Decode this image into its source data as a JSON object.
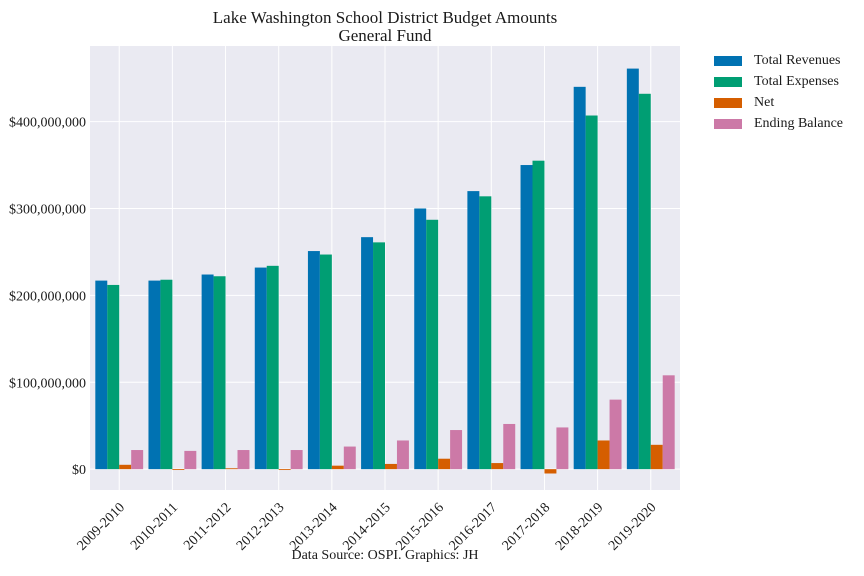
{
  "chart_data": {
    "type": "bar",
    "title": "Lake Washington School District Budget Amounts",
    "subtitle": "General Fund",
    "caption": "Data Source: OSPI. Graphics: JH",
    "categories": [
      "2009-2010",
      "2010-2011",
      "2011-2012",
      "2012-2013",
      "2013-2014",
      "2014-2015",
      "2015-2016",
      "2016-2017",
      "2017-2018",
      "2018-2019",
      "2019-2020"
    ],
    "series": [
      {
        "name": "Total Revenues",
        "color": "#0072B2",
        "values": [
          217000000,
          217000000,
          224000000,
          232000000,
          251000000,
          267000000,
          300000000,
          320000000,
          350000000,
          440000000,
          461000000
        ]
      },
      {
        "name": "Total Expenses",
        "color": "#009E73",
        "values": [
          212000000,
          218000000,
          222000000,
          234000000,
          247000000,
          261000000,
          287000000,
          314000000,
          355000000,
          407000000,
          432000000
        ]
      },
      {
        "name": "Net",
        "color": "#D55E00",
        "values": [
          5000000,
          -1000000,
          1000000,
          -1000000,
          4000000,
          6000000,
          12000000,
          7000000,
          -5000000,
          33000000,
          28000000
        ]
      },
      {
        "name": "Ending Balance",
        "color": "#CC79A7",
        "values": [
          22000000,
          21000000,
          22000000,
          22000000,
          26000000,
          33000000,
          45000000,
          52000000,
          48000000,
          80000000,
          108000000
        ]
      }
    ],
    "yticks": [
      0,
      100000000,
      200000000,
      300000000,
      400000000
    ],
    "ytick_labels": [
      "$0",
      "$100,000,000",
      "$200,000,000",
      "$300,000,000",
      "$400,000,000"
    ],
    "ylim": [
      -24000000,
      487000000
    ],
    "grid": true,
    "legend_position": "outside-top-right",
    "background": "#EAEAF2"
  }
}
